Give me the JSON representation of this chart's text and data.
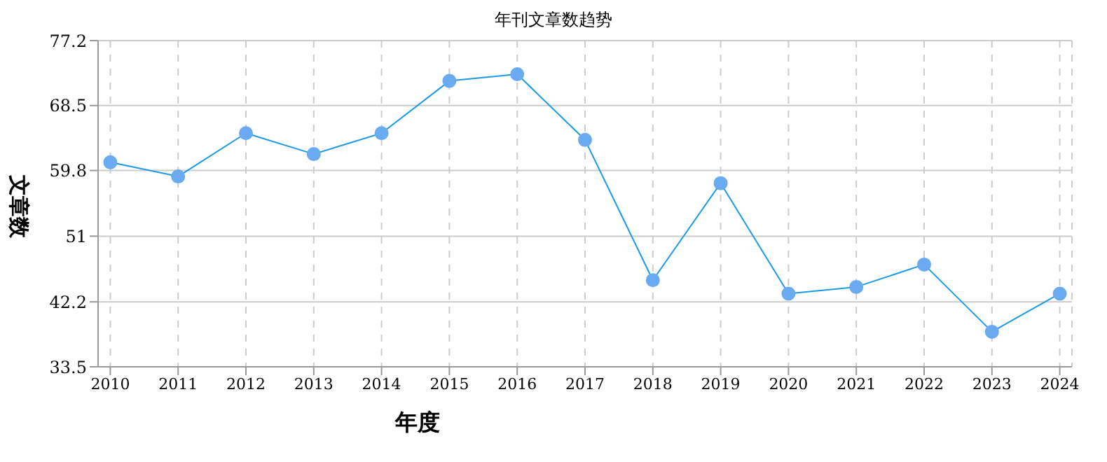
{
  "chart_data": {
    "type": "line",
    "title": "年刊文章数趋势",
    "xlabel": "年度",
    "ylabel": "文章数",
    "categories": [
      "2010",
      "2011",
      "2012",
      "2013",
      "2014",
      "2015",
      "2016",
      "2017",
      "2018",
      "2019",
      "2020",
      "2021",
      "2022",
      "2023",
      "2024"
    ],
    "series": [
      {
        "color": "#1a9ae6",
        "values": [
          60.9,
          59.0,
          64.8,
          62.0,
          64.8,
          71.8,
          72.7,
          63.9,
          45.1,
          58.1,
          43.3,
          44.2,
          47.2,
          38.2,
          43.3
        ]
      }
    ],
    "ylim": [
      33.5,
      77.2
    ],
    "yticks": [
      33.5,
      42.2,
      51.0,
      {
        "value": 59.8,
        "label": "59.8"
      },
      68.5,
      77.2
    ],
    "grid": true,
    "marker": "circle",
    "line_style": "solid",
    "legend": false
  }
}
